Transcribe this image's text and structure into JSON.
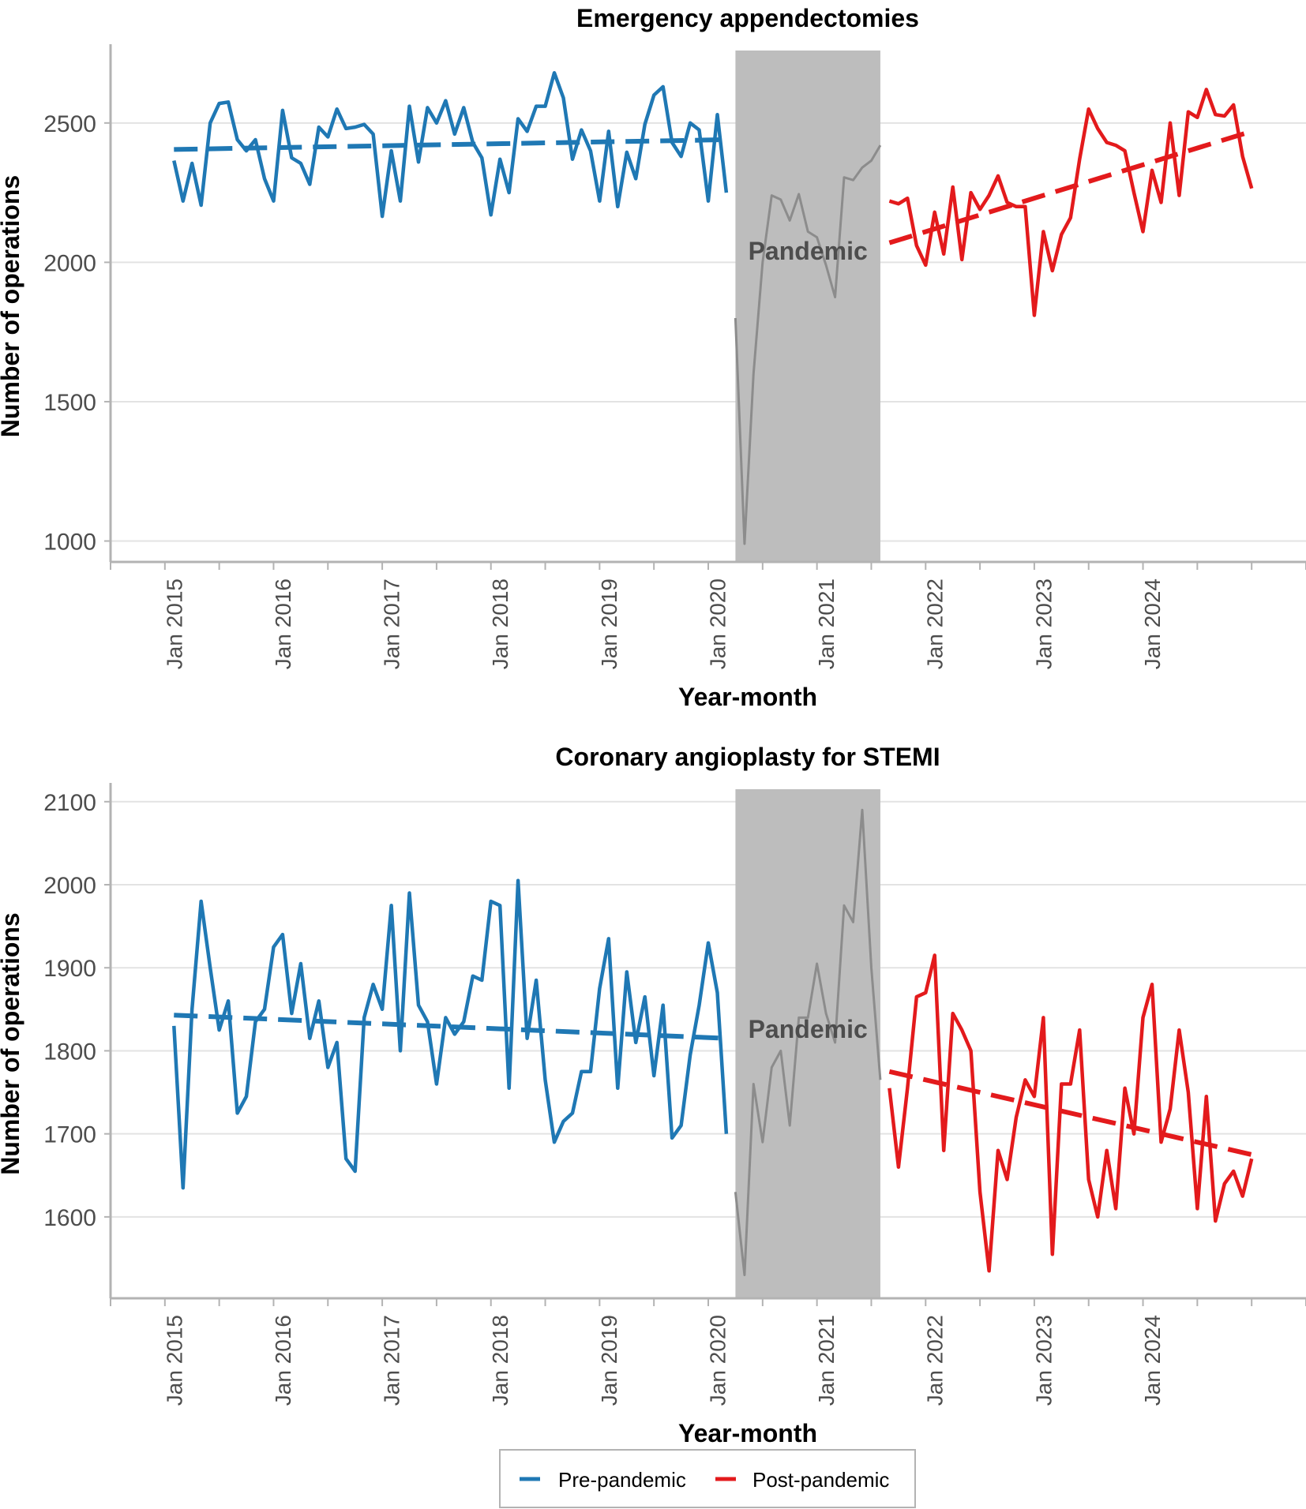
{
  "legend": {
    "items": [
      {
        "label": "Pre-pandemic",
        "color": "#1f78b4"
      },
      {
        "label": "Post-pandemic",
        "color": "#e31a1c"
      }
    ]
  },
  "colors": {
    "pre": "#1f78b4",
    "post": "#e31a1c",
    "pandemic_line": "#8c8c8c",
    "pandemic_shade": "#bdbdbd"
  },
  "chart_data": [
    {
      "type": "line",
      "title": "Emergency appendectomies",
      "xlabel": "Year-month",
      "ylabel": "Number of operations",
      "x_start": "2015-01",
      "x_ticks": [
        "Jan 2015",
        "Jan 2016",
        "Jan 2017",
        "Jan 2018",
        "Jan 2019",
        "Jan 2020",
        "Jan 2021",
        "Jan 2022",
        "Jan 2023",
        "Jan 2024"
      ],
      "yticks": [
        1000,
        1500,
        2000,
        2500
      ],
      "ylim": [
        925,
        2760
      ],
      "xlim": [
        "2014-06",
        "2025-06"
      ],
      "grid": true,
      "shaded_region": {
        "label": "Pandemic",
        "start": "2020-03",
        "end": "2021-07"
      },
      "series": [
        {
          "name": "Pre-pandemic",
          "start": "2015-01",
          "values": [
            2365,
            2220,
            2355,
            2205,
            2500,
            2570,
            2575,
            2440,
            2400,
            2440,
            2300,
            2220,
            2545,
            2375,
            2355,
            2280,
            2485,
            2450,
            2550,
            2480,
            2485,
            2495,
            2460,
            2165,
            2400,
            2220,
            2560,
            2360,
            2555,
            2500,
            2580,
            2460,
            2555,
            2430,
            2375,
            2170,
            2370,
            2250,
            2515,
            2470,
            2560,
            2560,
            2680,
            2590,
            2370,
            2475,
            2400,
            2220,
            2470,
            2200,
            2395,
            2300,
            2495,
            2600,
            2630,
            2430,
            2380,
            2500,
            2475,
            2220,
            2530,
            2250
          ]
        },
        {
          "name": "Pandemic",
          "start": "2020-03",
          "values": [
            1800,
            990,
            1600,
            2000,
            2240,
            2225,
            2150,
            2245,
            2110,
            2090,
            1990,
            1875,
            2305,
            2295,
            2340,
            2365,
            2420
          ]
        },
        {
          "name": "Post-pandemic",
          "start": "2021-08",
          "values": [
            2220,
            2210,
            2230,
            2060,
            1990,
            2180,
            2030,
            2270,
            2010,
            2250,
            2190,
            2240,
            2310,
            2215,
            2200,
            2200,
            1810,
            2110,
            1970,
            2100,
            2160,
            2370,
            2550,
            2480,
            2430,
            2420,
            2400,
            2250,
            2110,
            2330,
            2215,
            2500,
            2240,
            2540,
            2520,
            2620,
            2530,
            2525,
            2565,
            2380,
            2265
          ]
        }
      ],
      "trends": [
        {
          "name": "Pre-pandemic",
          "start": "2015-01",
          "end": "2020-02",
          "y0": 2405,
          "y1": 2440
        },
        {
          "name": "Post-pandemic",
          "start": "2021-08",
          "end": "2024-12",
          "y0": 2070,
          "y1": 2470
        }
      ]
    },
    {
      "type": "line",
      "title": "Coronary angioplasty for STEMI",
      "xlabel": "Year-month",
      "ylabel": "Number of operations",
      "x_start": "2015-01",
      "x_ticks": [
        "Jan 2015",
        "Jan 2016",
        "Jan 2017",
        "Jan 2018",
        "Jan 2019",
        "Jan 2020",
        "Jan 2021",
        "Jan 2022",
        "Jan 2023",
        "Jan 2024"
      ],
      "yticks": [
        1600,
        1700,
        1800,
        1900,
        2000,
        2100
      ],
      "ylim": [
        1502,
        2115
      ],
      "xlim": [
        "2014-06",
        "2025-06"
      ],
      "grid": true,
      "shaded_region": {
        "label": "Pandemic",
        "start": "2020-03",
        "end": "2021-07"
      },
      "series": [
        {
          "name": "Pre-pandemic",
          "start": "2015-01",
          "values": [
            1830,
            1635,
            1850,
            1980,
            1900,
            1825,
            1860,
            1725,
            1745,
            1835,
            1850,
            1925,
            1940,
            1845,
            1905,
            1815,
            1860,
            1780,
            1810,
            1670,
            1655,
            1840,
            1880,
            1850,
            1975,
            1800,
            1990,
            1855,
            1835,
            1760,
            1840,
            1820,
            1835,
            1890,
            1885,
            1980,
            1975,
            1755,
            2005,
            1815,
            1885,
            1765,
            1690,
            1715,
            1725,
            1775,
            1775,
            1875,
            1935,
            1755,
            1895,
            1810,
            1865,
            1770,
            1855,
            1695,
            1710,
            1795,
            1855,
            1930,
            1870,
            1700
          ]
        },
        {
          "name": "Pandemic",
          "start": "2020-03",
          "values": [
            1630,
            1530,
            1760,
            1690,
            1780,
            1800,
            1710,
            1840,
            1840,
            1905,
            1845,
            1810,
            1975,
            1955,
            2090,
            1900,
            1765
          ]
        },
        {
          "name": "Post-pandemic",
          "start": "2021-08",
          "values": [
            1755,
            1660,
            1755,
            1865,
            1870,
            1915,
            1680,
            1845,
            1825,
            1800,
            1630,
            1535,
            1680,
            1645,
            1720,
            1765,
            1745,
            1840,
            1555,
            1760,
            1760,
            1825,
            1645,
            1600,
            1680,
            1610,
            1755,
            1700,
            1840,
            1880,
            1690,
            1730,
            1825,
            1750,
            1610,
            1745,
            1595,
            1640,
            1655,
            1625,
            1670
          ]
        }
      ],
      "trends": [
        {
          "name": "Pre-pandemic",
          "start": "2015-01",
          "end": "2020-02",
          "y0": 1843,
          "y1": 1815
        },
        {
          "name": "Post-pandemic",
          "start": "2021-08",
          "end": "2024-12",
          "y0": 1775,
          "y1": 1675
        }
      ]
    }
  ]
}
